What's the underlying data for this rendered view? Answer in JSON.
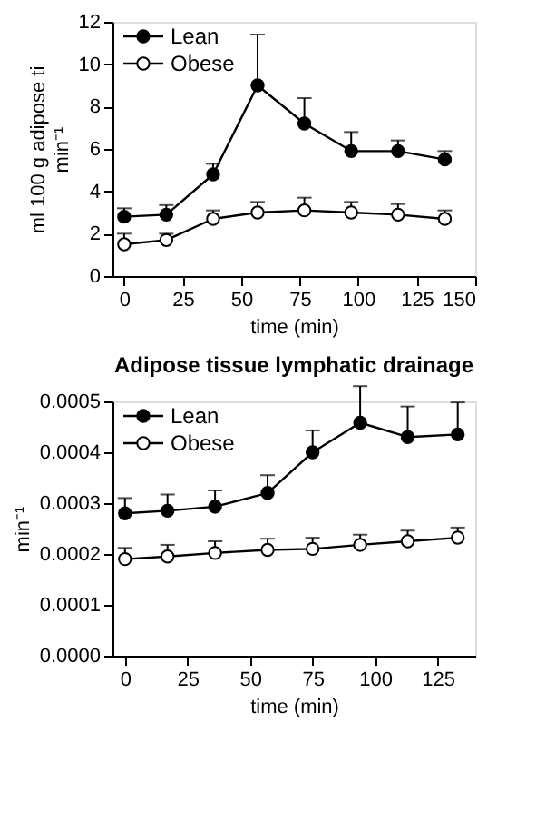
{
  "chart_data": [
    {
      "type": "line",
      "ylabel": [
        "ml 100 g adipose ti",
        "min⁻¹"
      ],
      "xlabel": "time (min)",
      "xlim": [
        -5,
        150
      ],
      "xticks": [
        0,
        25,
        50,
        75,
        100,
        125,
        150
      ],
      "ylim": [
        0,
        12
      ],
      "yticks": [
        0,
        2,
        4,
        6,
        8,
        10,
        12
      ],
      "legend": "top left",
      "marker": "circle",
      "line_style": "solid",
      "grid": false,
      "x": [
        0,
        18,
        38,
        57,
        77,
        97,
        117,
        137
      ],
      "series": [
        {
          "name": "Lean",
          "color": "#000000",
          "values": [
            2.8,
            2.9,
            4.8,
            9.0,
            7.2,
            5.9,
            5.9,
            5.5
          ],
          "errors": [
            [
              2.8,
              3.2
            ],
            [
              2.9,
              3.35
            ],
            [
              4.8,
              5.3
            ],
            [
              9.0,
              11.4
            ],
            [
              7.2,
              8.4
            ],
            [
              5.9,
              6.8
            ],
            [
              5.9,
              6.4
            ],
            [
              5.5,
              5.9
            ]
          ]
        },
        {
          "name": "Obese",
          "color": "#000000",
          "values": [
            1.5,
            1.7,
            2.7,
            3.0,
            3.1,
            3.0,
            2.9,
            2.7
          ],
          "errors": [
            [
              1.5,
              2.0
            ],
            [
              1.7,
              2.0
            ],
            [
              2.7,
              3.1
            ],
            [
              3.0,
              3.5
            ],
            [
              3.1,
              3.7
            ],
            [
              3.0,
              3.5
            ],
            [
              2.9,
              3.4
            ],
            [
              2.7,
              3.1
            ]
          ]
        }
      ]
    },
    {
      "type": "line",
      "title": "Adipose tissue lymphatic drainage",
      "ylabel": "min⁻¹",
      "xlabel": "time (min)",
      "xlim": [
        -5,
        140
      ],
      "xticks": [
        0,
        25,
        50,
        75,
        100,
        125
      ],
      "ylim": [
        0,
        0.0005
      ],
      "yticks": [
        {
          "value": 0,
          "label": "0.0000"
        },
        {
          "value": 0.0001,
          "label": "0.0001"
        },
        {
          "value": 0.0002,
          "label": "0.0002"
        },
        {
          "value": 0.0003,
          "label": "0.0003"
        },
        {
          "value": 0.0004,
          "label": "0.0004"
        },
        {
          "value": 0.0005,
          "label": "0.0005"
        }
      ],
      "legend": "top left",
      "marker": "circle",
      "line_style": "solid",
      "grid": false,
      "x": [
        0,
        17,
        36,
        57,
        75,
        94,
        113,
        133
      ],
      "series": [
        {
          "name": "Lean",
          "color": "#000000",
          "values": [
            0.00028,
            0.000285,
            0.000293,
            0.00032,
            0.0004,
            0.000458,
            0.00043,
            0.000435
          ],
          "errors": [
            [
              0.00028,
              0.00031
            ],
            [
              0.000285,
              0.000317
            ],
            [
              0.000293,
              0.000325
            ],
            [
              0.00032,
              0.000355
            ],
            [
              0.0004,
              0.000443
            ],
            [
              0.000458,
              0.00053
            ],
            [
              0.00043,
              0.00049
            ],
            [
              0.000435,
              0.000498
            ]
          ]
        },
        {
          "name": "Obese",
          "color": "#000000",
          "values": [
            0.00019,
            0.000195,
            0.000202,
            0.000208,
            0.00021,
            0.000218,
            0.000225,
            0.000232
          ],
          "errors": [
            [
              0.00019,
              0.000212
            ],
            [
              0.000195,
              0.000218
            ],
            [
              0.000202,
              0.000225
            ],
            [
              0.000208,
              0.00023
            ],
            [
              0.00021,
              0.000232
            ],
            [
              0.000218,
              0.000238
            ],
            [
              0.000225,
              0.000246
            ],
            [
              0.000232,
              0.000252
            ]
          ]
        }
      ]
    }
  ]
}
